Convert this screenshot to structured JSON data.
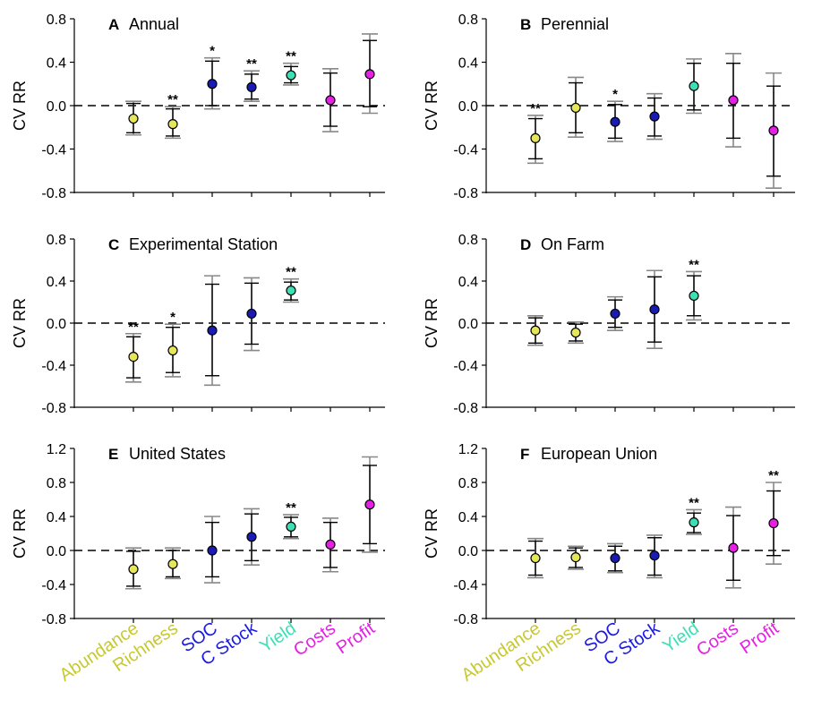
{
  "colors": {
    "abundance": "#e6e65a",
    "richness": "#e6e65a",
    "soc": "#1a1ab4",
    "c_stock": "#1a1ab4",
    "yield": "#3ce0b4",
    "costs": "#e61ee6",
    "profit": "#e61ee6",
    "abundance_label": "#c8c832",
    "richness_label": "#c8c832",
    "soc_label": "#1a1ae6",
    "c_stock_label": "#1a1ae6",
    "yield_label": "#3ce0b4",
    "costs_label": "#e61ee6",
    "profit_label": "#e61ee6",
    "error_ci95": "#888888",
    "error_ci90": "#000000"
  },
  "x_labels": [
    "Abundance",
    "Richness",
    "SOC",
    "C Stock",
    "Yield",
    "Costs",
    "Profit"
  ],
  "chart_data": [
    {
      "type": "scatter",
      "panel": "A",
      "title": "Annual",
      "ylabel": "CV RR",
      "yticks": [
        "0.8",
        "0.4",
        "0.0",
        "-0.4",
        "-0.8"
      ],
      "ylim": [
        -0.8,
        0.8
      ],
      "points": [
        {
          "category": "Abundance",
          "value": -0.12,
          "ci90": [
            -0.25,
            0.02
          ],
          "ci95": [
            -0.27,
            0.04
          ],
          "sig": ""
        },
        {
          "category": "Richness",
          "value": -0.17,
          "ci90": [
            -0.28,
            -0.03
          ],
          "ci95": [
            -0.3,
            -0.01
          ],
          "sig": "**"
        },
        {
          "category": "SOC",
          "value": 0.2,
          "ci90": [
            0.0,
            0.41
          ],
          "ci95": [
            -0.03,
            0.44
          ],
          "sig": "*"
        },
        {
          "category": "C Stock",
          "value": 0.17,
          "ci90": [
            0.06,
            0.29
          ],
          "ci95": [
            0.04,
            0.32
          ],
          "sig": "**"
        },
        {
          "category": "Yield",
          "value": 0.28,
          "ci90": [
            0.21,
            0.36
          ],
          "ci95": [
            0.19,
            0.39
          ],
          "sig": "**"
        },
        {
          "category": "Costs",
          "value": 0.05,
          "ci90": [
            -0.19,
            0.3
          ],
          "ci95": [
            -0.24,
            0.34
          ],
          "sig": ""
        },
        {
          "category": "Profit",
          "value": 0.29,
          "ci90": [
            -0.01,
            0.6
          ],
          "ci95": [
            -0.07,
            0.66
          ],
          "sig": ""
        }
      ]
    },
    {
      "type": "scatter",
      "panel": "B",
      "title": "Perennial",
      "ylabel": "CV RR",
      "yticks": [
        "0.8",
        "0.4",
        "0.0",
        "-0.4",
        "-0.8"
      ],
      "ylim": [
        -0.8,
        0.8
      ],
      "points": [
        {
          "category": "Abundance",
          "value": -0.3,
          "ci90": [
            -0.49,
            -0.12
          ],
          "ci95": [
            -0.53,
            -0.09
          ],
          "sig": "**"
        },
        {
          "category": "Richness",
          "value": -0.02,
          "ci90": [
            -0.25,
            0.21
          ],
          "ci95": [
            -0.29,
            0.26
          ],
          "sig": ""
        },
        {
          "category": "SOC",
          "value": -0.15,
          "ci90": [
            -0.3,
            0.01
          ],
          "ci95": [
            -0.33,
            0.04
          ],
          "sig": "*"
        },
        {
          "category": "C Stock",
          "value": -0.1,
          "ci90": [
            -0.28,
            0.07
          ],
          "ci95": [
            -0.31,
            0.11
          ],
          "sig": ""
        },
        {
          "category": "Yield",
          "value": 0.18,
          "ci90": [
            -0.04,
            0.39
          ],
          "ci95": [
            -0.07,
            0.43
          ],
          "sig": ""
        },
        {
          "category": "Costs",
          "value": 0.05,
          "ci90": [
            -0.3,
            0.39
          ],
          "ci95": [
            -0.38,
            0.48
          ],
          "sig": ""
        },
        {
          "category": "Profit",
          "value": -0.23,
          "ci90": [
            -0.65,
            0.18
          ],
          "ci95": [
            -0.76,
            0.3
          ],
          "sig": ""
        }
      ]
    },
    {
      "type": "scatter",
      "panel": "C",
      "title": "Experimental Station",
      "ylabel": "CV RR",
      "yticks": [
        "0.8",
        "0.4",
        "0.0",
        "-0.4",
        "-0.8"
      ],
      "ylim": [
        -0.8,
        0.8
      ],
      "points": [
        {
          "category": "Abundance",
          "value": -0.32,
          "ci90": [
            -0.52,
            -0.13
          ],
          "ci95": [
            -0.56,
            -0.1
          ],
          "sig": "**"
        },
        {
          "category": "Richness",
          "value": -0.26,
          "ci90": [
            -0.47,
            -0.04
          ],
          "ci95": [
            -0.51,
            -0.01
          ],
          "sig": "*"
        },
        {
          "category": "SOC",
          "value": -0.07,
          "ci90": [
            -0.5,
            0.37
          ],
          "ci95": [
            -0.59,
            0.45
          ],
          "sig": ""
        },
        {
          "category": "C Stock",
          "value": 0.09,
          "ci90": [
            -0.2,
            0.38
          ],
          "ci95": [
            -0.26,
            0.43
          ],
          "sig": ""
        },
        {
          "category": "Yield",
          "value": 0.31,
          "ci90": [
            0.22,
            0.39
          ],
          "ci95": [
            0.2,
            0.42
          ],
          "sig": "**"
        }
      ]
    },
    {
      "type": "scatter",
      "panel": "D",
      "title": "On Farm",
      "ylabel": "CV RR",
      "yticks": [
        "0.8",
        "0.4",
        "0.0",
        "-0.4",
        "-0.8"
      ],
      "ylim": [
        -0.8,
        0.8
      ],
      "points": [
        {
          "category": "Abundance",
          "value": -0.07,
          "ci90": [
            -0.19,
            0.05
          ],
          "ci95": [
            -0.21,
            0.07
          ],
          "sig": ""
        },
        {
          "category": "Richness",
          "value": -0.09,
          "ci90": [
            -0.17,
            -0.01
          ],
          "ci95": [
            -0.19,
            0.01
          ],
          "sig": ""
        },
        {
          "category": "SOC",
          "value": 0.09,
          "ci90": [
            -0.04,
            0.22
          ],
          "ci95": [
            -0.07,
            0.25
          ],
          "sig": ""
        },
        {
          "category": "C Stock",
          "value": 0.13,
          "ci90": [
            -0.18,
            0.44
          ],
          "ci95": [
            -0.24,
            0.5
          ],
          "sig": ""
        },
        {
          "category": "Yield",
          "value": 0.26,
          "ci90": [
            0.07,
            0.45
          ],
          "ci95": [
            0.03,
            0.49
          ],
          "sig": "**"
        }
      ]
    },
    {
      "type": "scatter",
      "panel": "E",
      "title": "United States",
      "ylabel": "CV RR",
      "yticks": [
        "1.2",
        "0.8",
        "0.4",
        "0.0",
        "-0.4",
        "-0.8"
      ],
      "ylim": [
        -0.8,
        1.2
      ],
      "points": [
        {
          "category": "Abundance",
          "value": -0.22,
          "ci90": [
            -0.42,
            -0.01
          ],
          "ci95": [
            -0.45,
            0.03
          ],
          "sig": ""
        },
        {
          "category": "Richness",
          "value": -0.16,
          "ci90": [
            -0.31,
            0.0
          ],
          "ci95": [
            -0.33,
            0.03
          ],
          "sig": ""
        },
        {
          "category": "SOC",
          "value": 0.0,
          "ci90": [
            -0.31,
            0.33
          ],
          "ci95": [
            -0.38,
            0.4
          ],
          "sig": ""
        },
        {
          "category": "C Stock",
          "value": 0.16,
          "ci90": [
            -0.12,
            0.43
          ],
          "ci95": [
            -0.17,
            0.49
          ],
          "sig": ""
        },
        {
          "category": "Yield",
          "value": 0.28,
          "ci90": [
            0.16,
            0.39
          ],
          "ci95": [
            0.14,
            0.42
          ],
          "sig": "**"
        },
        {
          "category": "Costs",
          "value": 0.07,
          "ci90": [
            -0.2,
            0.33
          ],
          "ci95": [
            -0.25,
            0.38
          ],
          "sig": ""
        },
        {
          "category": "Profit",
          "value": 0.54,
          "ci90": [
            0.08,
            1.0
          ],
          "ci95": [
            -0.02,
            1.1
          ],
          "sig": ""
        }
      ]
    },
    {
      "type": "scatter",
      "panel": "F",
      "title": "European Union",
      "ylabel": "CV RR",
      "yticks": [
        "1.2",
        "0.8",
        "0.4",
        "0.0",
        "-0.4",
        "-0.8"
      ],
      "ylim": [
        -0.8,
        1.2
      ],
      "points": [
        {
          "category": "Abundance",
          "value": -0.09,
          "ci90": [
            -0.29,
            0.11
          ],
          "ci95": [
            -0.32,
            0.14
          ],
          "sig": ""
        },
        {
          "category": "Richness",
          "value": -0.08,
          "ci90": [
            -0.2,
            0.03
          ],
          "ci95": [
            -0.22,
            0.05
          ],
          "sig": ""
        },
        {
          "category": "SOC",
          "value": -0.09,
          "ci90": [
            -0.24,
            0.05
          ],
          "ci95": [
            -0.26,
            0.08
          ],
          "sig": ""
        },
        {
          "category": "C Stock",
          "value": -0.06,
          "ci90": [
            -0.29,
            0.15
          ],
          "ci95": [
            -0.32,
            0.18
          ],
          "sig": ""
        },
        {
          "category": "Yield",
          "value": 0.33,
          "ci90": [
            0.21,
            0.44
          ],
          "ci95": [
            0.19,
            0.48
          ],
          "sig": "**"
        },
        {
          "category": "Costs",
          "value": 0.03,
          "ci90": [
            -0.35,
            0.41
          ],
          "ci95": [
            -0.44,
            0.51
          ],
          "sig": ""
        },
        {
          "category": "Profit",
          "value": 0.32,
          "ci90": [
            -0.06,
            0.7
          ],
          "ci95": [
            -0.16,
            0.8
          ],
          "sig": "**"
        }
      ]
    }
  ]
}
